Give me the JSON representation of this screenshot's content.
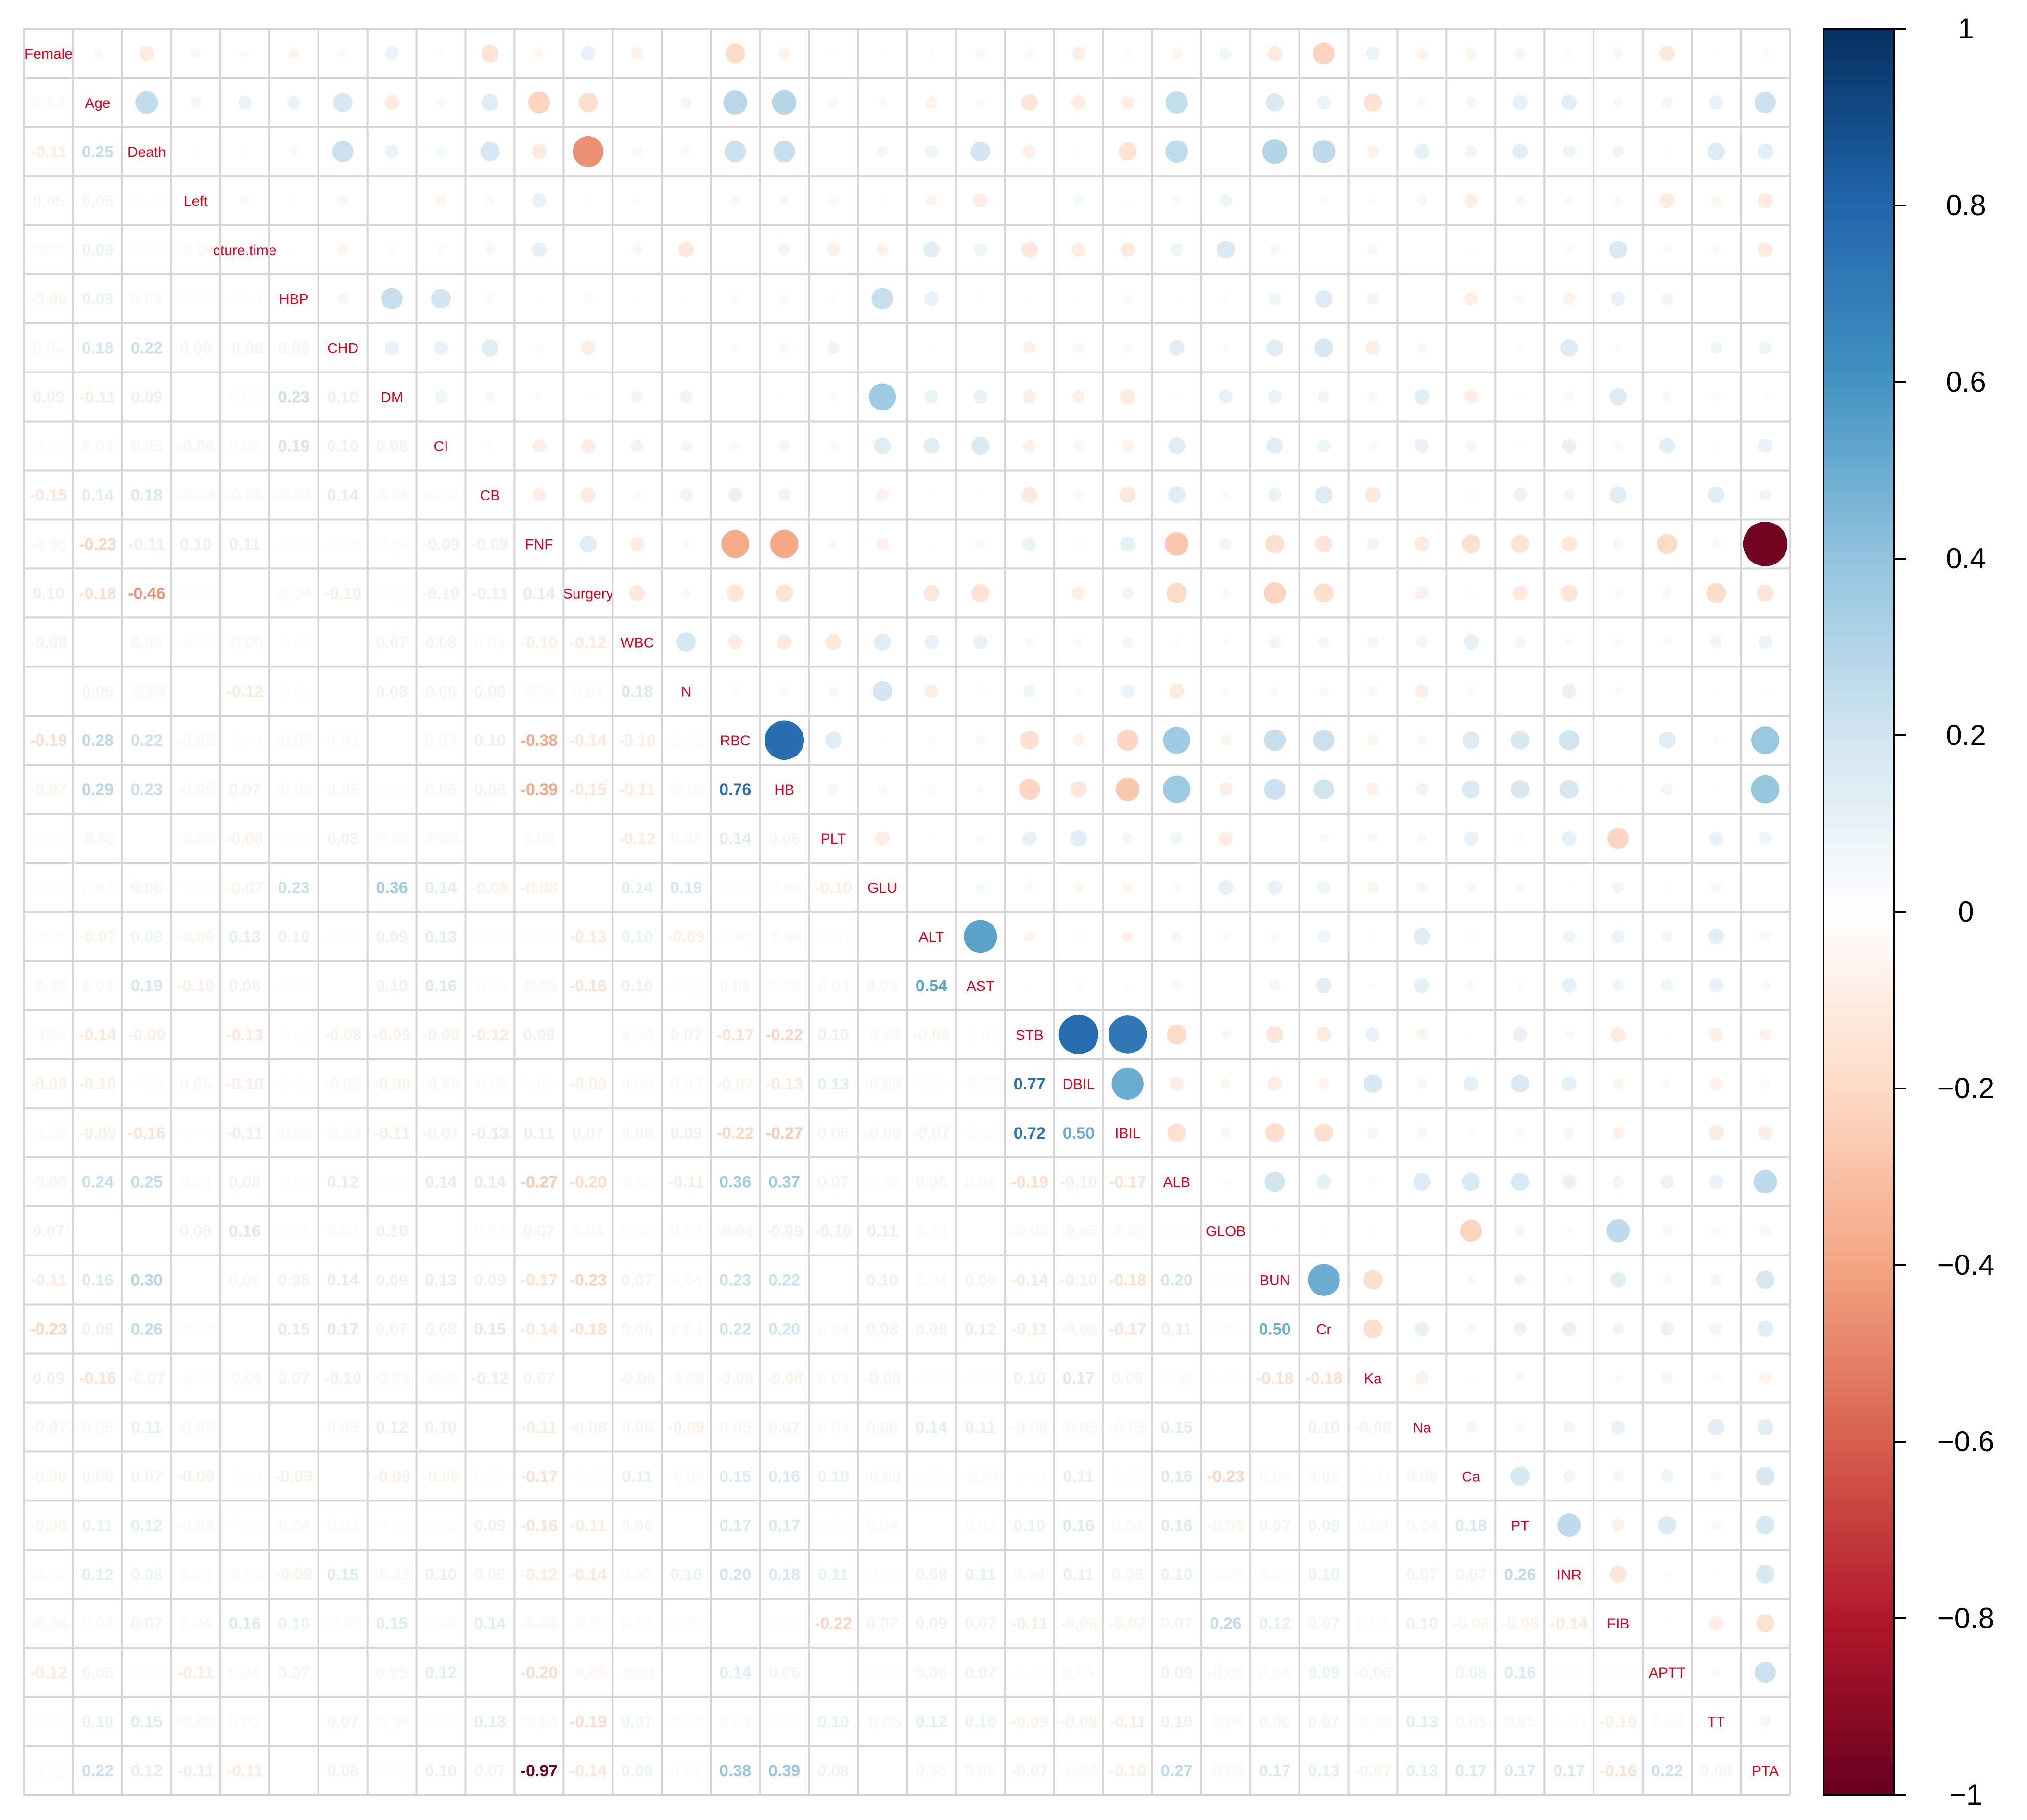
{
  "chart_data": {
    "type": "heatmap",
    "subtype": "correlation-matrix (upper: circles sized/colored by r, lower: coefficient numbers)",
    "variables": [
      "Female",
      "Age",
      "Death",
      "Left",
      "Fracture.time",
      "HBP",
      "CHD",
      "DM",
      "CI",
      "CB",
      "FNF",
      "Surgery",
      "WBC",
      "N",
      "RBC",
      "HB",
      "PLT",
      "GLU",
      "ALT",
      "AST",
      "STB",
      "DBIL",
      "IBIL",
      "ALB",
      "GLOB",
      "BUN",
      "Cr",
      "Ka",
      "Na",
      "Ca",
      "PT",
      "INR",
      "FIB",
      "APTT",
      "TT",
      "PTA"
    ],
    "variable_labels_shown": [
      "Female",
      "Age",
      "Death",
      "Left",
      "cture.time",
      "HBP",
      "CHD",
      "DM",
      "CI",
      "CB",
      "FNF",
      "Surgery",
      "WBC",
      "N",
      "RBC",
      "HB",
      "PLT",
      "GLU",
      "ALT",
      "AST",
      "STB",
      "DBIL",
      "IBIL",
      "ALB",
      "GLOB",
      "BUN",
      "Cr",
      "Ka",
      "Na",
      "Ca",
      "PT",
      "INR",
      "FIB",
      "APTT",
      "TT",
      "PTA"
    ],
    "lower_triangle_rows": [
      [],
      [
        0.04
      ],
      [
        -0.11,
        0.25
      ],
      [
        0.05,
        0.06,
        -0.01
      ],
      [
        -0.03,
        0.09,
        0.02,
        -0.04
      ],
      [
        -0.06,
        0.09,
        0.04,
        0.02,
        -0.01
      ],
      [
        0.04,
        0.18,
        0.22,
        0.06,
        -0.06,
        0.06
      ],
      [
        0.09,
        -0.11,
        0.09,
        0.01,
        0.02,
        0.23,
        0.1
      ],
      [
        -0.02,
        0.04,
        0.05,
        -0.06,
        0.03,
        0.19,
        0.1,
        0.08
      ],
      [
        -0.15,
        0.14,
        0.18,
        -0.04,
        -0.05,
        -0.04,
        0.14,
        -0.05,
        -0.02
      ],
      [
        -0.05,
        -0.23,
        -0.11,
        0.1,
        0.11,
        -0.01,
        -0.03,
        -0.03,
        -0.09,
        -0.09
      ],
      [
        0.1,
        -0.18,
        -0.46,
        0.02,
        0.01,
        -0.04,
        -0.1,
        -0.02,
        -0.1,
        -0.11,
        0.14
      ],
      [
        -0.08,
        0.01,
        0.05,
        -0.02,
        -0.05,
        -0.01,
        0.01,
        0.07,
        0.08,
        0.03,
        -0.1,
        -0.12
      ],
      [
        0.01,
        0.06,
        -0.04,
        0.01,
        -0.12,
        -0.01,
        0.01,
        0.08,
        0.06,
        0.08,
        -0.03,
        0.04,
        0.18
      ],
      [
        -0.19,
        0.28,
        0.22,
        -0.05,
        -0.01,
        -0.04,
        0.03,
        -0.0,
        0.04,
        0.1,
        -0.38,
        -0.14,
        -0.1,
        -0.02
      ],
      [
        -0.07,
        0.29,
        0.23,
        -0.05,
        0.07,
        -0.04,
        0.05,
        -0.01,
        0.06,
        0.08,
        -0.39,
        -0.15,
        -0.11,
        -0.04,
        0.76
      ],
      [
        -0.01,
        -0.05,
        0.01,
        -0.04,
        -0.08,
        -0.02,
        0.08,
        -0.04,
        -0.04,
        0.01,
        0.04,
        0.01,
        -0.12,
        0.05,
        0.14,
        0.06
      ],
      [
        -0.01,
        0.03,
        0.06,
        -0.01,
        -0.07,
        0.23,
        0.01,
        0.36,
        0.14,
        -0.08,
        -0.08,
        0.01,
        0.14,
        0.19,
        -0.01,
        -0.04,
        -0.1
      ],
      [
        -0.03,
        -0.07,
        0.08,
        -0.06,
        0.13,
        0.1,
        -0.02,
        0.09,
        0.13,
        -0.01,
        -0.01,
        -0.13,
        0.1,
        -0.09,
        -0.03,
        -0.04,
        -0.01,
        0.01
      ],
      [
        -0.05,
        0.04,
        0.19,
        -0.1,
        0.08,
        0.02,
        0.01,
        0.1,
        0.16,
        -0.01,
        -0.05,
        -0.16,
        0.1,
        -0.02,
        0.05,
        0.03,
        0.04,
        0.05,
        0.54
      ],
      [
        -0.04,
        -0.14,
        -0.09,
        0.01,
        -0.13,
        -0.01,
        -0.08,
        -0.09,
        -0.08,
        -0.12,
        0.09,
        0.01,
        0.04,
        0.07,
        -0.17,
        -0.22,
        0.1,
        -0.04,
        -0.06,
        -0.01
      ],
      [
        -0.09,
        -0.1,
        -0.01,
        0.05,
        -0.1,
        -0.01,
        -0.05,
        -0.08,
        -0.05,
        -0.04,
        0.02,
        -0.09,
        0.04,
        0.03,
        -0.07,
        -0.13,
        0.13,
        -0.05,
        0.02,
        -0.03,
        0.77
      ],
      [
        -0.03,
        -0.09,
        -0.16,
        -0.01,
        -0.11,
        -0.04,
        -0.04,
        -0.11,
        -0.07,
        -0.13,
        0.11,
        0.07,
        0.06,
        0.09,
        -0.22,
        -0.27,
        0.06,
        -0.06,
        -0.07,
        -0.02,
        0.72,
        0.5
      ],
      [
        -0.06,
        0.24,
        0.25,
        0.03,
        0.08,
        -0.01,
        0.12,
        0.02,
        0.14,
        0.14,
        -0.27,
        -0.2,
        -0.02,
        -0.11,
        0.36,
        0.37,
        0.07,
        -0.03,
        0.06,
        0.04,
        -0.19,
        -0.1,
        -0.17
      ],
      [
        0.07,
        0.01,
        0.01,
        0.08,
        0.16,
        0.02,
        0.03,
        0.1,
        0.01,
        0.03,
        0.07,
        0.04,
        0.02,
        0.03,
        -0.06,
        -0.09,
        -0.1,
        0.11,
        0.03,
        0.01,
        -0.05,
        -0.05,
        -0.05,
        -0.02
      ],
      [
        -0.11,
        0.16,
        0.3,
        0.01,
        0.05,
        0.08,
        0.14,
        0.09,
        0.13,
        0.09,
        -0.17,
        -0.23,
        0.07,
        0.04,
        0.23,
        0.22,
        0.01,
        0.1,
        0.04,
        0.06,
        -0.14,
        -0.1,
        -0.18,
        0.2,
        -0.01
      ],
      [
        -0.23,
        0.09,
        0.26,
        -0.03,
        0.01,
        0.15,
        0.17,
        0.07,
        0.08,
        0.15,
        -0.14,
        -0.18,
        0.06,
        0.04,
        0.22,
        0.2,
        0.04,
        0.08,
        0.08,
        0.12,
        -0.11,
        -0.06,
        -0.17,
        0.11,
        0.02,
        0.5
      ],
      [
        0.09,
        -0.16,
        -0.07,
        -0.02,
        -0.05,
        0.07,
        -0.1,
        -0.05,
        -0.04,
        -0.12,
        0.07,
        0.01,
        -0.06,
        -0.05,
        -0.06,
        -0.08,
        0.05,
        -0.06,
        -0.01,
        -0.02,
        0.1,
        0.17,
        0.06,
        -0.03,
        -0.01,
        -0.18,
        -0.18
      ],
      [
        -0.07,
        0.05,
        0.11,
        -0.05,
        0.01,
        0.01,
        0.05,
        0.12,
        0.1,
        0.01,
        -0.11,
        -0.08,
        0.06,
        -0.09,
        0.05,
        0.07,
        0.04,
        0.06,
        0.14,
        0.11,
        -0.06,
        -0.05,
        -0.05,
        0.15,
        0.01,
        0.01,
        0.1,
        -0.08
      ],
      [
        -0.06,
        0.06,
        0.07,
        -0.09,
        -0.01,
        -0.09,
        0.01,
        -0.09,
        -0.06,
        0.02,
        -0.17,
        -0.02,
        0.11,
        -0.04,
        0.15,
        0.16,
        0.1,
        -0.05,
        0.02,
        -0.04,
        -0.01,
        0.11,
        0.02,
        0.16,
        -0.23,
        0.04,
        0.05,
        -0.01,
        0.06
      ],
      [
        -0.06,
        0.11,
        0.12,
        -0.05,
        -0.01,
        0.04,
        0.03,
        -0.01,
        0.02,
        0.09,
        -0.16,
        -0.11,
        0.06,
        0.01,
        0.17,
        0.17,
        0.02,
        0.04,
        0.01,
        0.03,
        0.1,
        0.16,
        0.04,
        0.16,
        -0.06,
        0.07,
        0.09,
        0.04,
        0.04,
        0.18
      ],
      [
        -0.03,
        0.12,
        0.08,
        0.03,
        -0.03,
        -0.08,
        0.15,
        -0.05,
        0.1,
        0.06,
        -0.12,
        -0.14,
        0.03,
        0.1,
        0.2,
        0.18,
        0.11,
        -0.01,
        0.08,
        0.11,
        0.04,
        0.11,
        0.06,
        0.1,
        -0.03,
        0.03,
        0.1,
        0.01,
        0.07,
        0.07,
        0.26
      ],
      [
        -0.05,
        0.04,
        0.07,
        0.04,
        0.16,
        0.1,
        -0.03,
        0.15,
        0.03,
        0.14,
        -0.05,
        -0.03,
        0.03,
        -0.03,
        0.01,
        -0.01,
        -0.22,
        0.07,
        0.09,
        0.07,
        -0.11,
        -0.06,
        -0.07,
        0.07,
        0.26,
        0.12,
        0.07,
        0.03,
        0.1,
        -0.06,
        -0.08,
        -0.14
      ],
      [
        -0.12,
        0.06,
        0.02,
        -0.11,
        0.04,
        0.07,
        0.01,
        0.05,
        0.12,
        0.01,
        -0.2,
        -0.05,
        -0.04,
        0.01,
        0.14,
        0.06,
        0.01,
        0.02,
        0.06,
        0.07,
        -0.01,
        0.04,
        0.01,
        0.09,
        -0.05,
        0.04,
        0.09,
        -0.06,
        0.01,
        0.08,
        0.16,
        0.02,
        -0.01
      ],
      [
        -0.01,
        0.1,
        0.15,
        -0.05,
        0.03,
        0.01,
        0.07,
        -0.04,
        0.02,
        0.13,
        -0.04,
        -0.19,
        0.07,
        -0.02,
        0.03,
        -0.01,
        0.1,
        -0.05,
        0.12,
        0.1,
        -0.09,
        -0.08,
        -0.11,
        0.1,
        -0.04,
        0.06,
        0.07,
        -0.04,
        0.13,
        0.05,
        0.05,
        -0.01,
        -0.1,
        0.03
      ],
      [
        -0.03,
        0.22,
        0.12,
        -0.11,
        -0.11,
        0.01,
        0.08,
        0.02,
        0.1,
        0.07,
        -0.97,
        -0.14,
        0.09,
        0.02,
        0.38,
        0.39,
        0.08,
        0.01,
        0.05,
        0.05,
        -0.07,
        -0.04,
        -0.1,
        0.27,
        -0.05,
        0.17,
        0.13,
        -0.07,
        0.13,
        0.17,
        0.17,
        0.17,
        -0.16,
        0.22,
        0.06
      ]
    ],
    "color_scale": {
      "domain": [
        -1,
        1
      ],
      "palette": "RdBu (red = -1, white = 0, blue = +1)",
      "stops": [
        {
          "value": -1.0,
          "color": "#67001f"
        },
        {
          "value": -0.8,
          "color": "#b2182b"
        },
        {
          "value": -0.6,
          "color": "#d6604d"
        },
        {
          "value": -0.4,
          "color": "#f4a582"
        },
        {
          "value": -0.2,
          "color": "#fddbc7"
        },
        {
          "value": 0.0,
          "color": "#ffffff"
        },
        {
          "value": 0.2,
          "color": "#d1e5f0"
        },
        {
          "value": 0.4,
          "color": "#92c5de"
        },
        {
          "value": 0.6,
          "color": "#4393c3"
        },
        {
          "value": 0.8,
          "color": "#2166ac"
        },
        {
          "value": 1.0,
          "color": "#053061"
        }
      ]
    },
    "colorbar_ticks": [
      "1",
      "0.8",
      "0.6",
      "0.4",
      "0.2",
      "0",
      "−0.2",
      "−0.4",
      "−0.6",
      "−0.8",
      "−1"
    ],
    "colorbar_tick_values": [
      1,
      0.8,
      0.6,
      0.4,
      0.2,
      0,
      -0.2,
      -0.4,
      -0.6,
      -0.8,
      -1
    ],
    "legend_position": "right",
    "grid": true,
    "title": ""
  }
}
